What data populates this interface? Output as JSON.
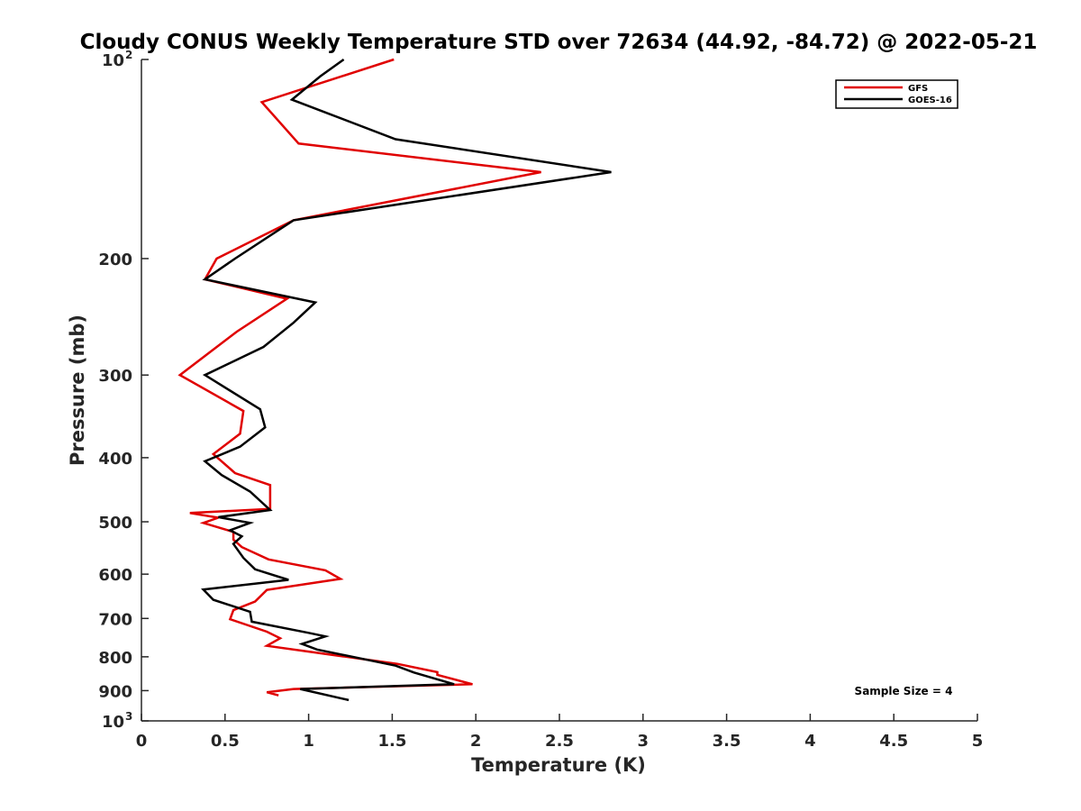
{
  "chart_data": {
    "type": "line",
    "title": "Cloudy CONUS Weekly Temperature STD over 72634 (44.92, -84.72) @ 2022-05-21",
    "xlabel": "Temperature (K)",
    "ylabel": "Pressure (mb)",
    "xlim": [
      0,
      5
    ],
    "ylim": [
      100,
      1000
    ],
    "yscale": "log",
    "y_reversed": true,
    "grid": false,
    "x_ticks": [
      {
        "value": 0,
        "label": "0"
      },
      {
        "value": 0.5,
        "label": "0.5"
      },
      {
        "value": 1,
        "label": "1"
      },
      {
        "value": 1.5,
        "label": "1.5"
      },
      {
        "value": 2,
        "label": "2"
      },
      {
        "value": 2.5,
        "label": "2.5"
      },
      {
        "value": 3,
        "label": "3"
      },
      {
        "value": 3.5,
        "label": "3.5"
      },
      {
        "value": 4,
        "label": "4"
      },
      {
        "value": 4.5,
        "label": "4.5"
      },
      {
        "value": 5,
        "label": "5"
      }
    ],
    "y_ticks": [
      {
        "value": 100,
        "label": "10",
        "exp": "2"
      },
      {
        "value": 200,
        "label": "200"
      },
      {
        "value": 300,
        "label": "300"
      },
      {
        "value": 400,
        "label": "400"
      },
      {
        "value": 500,
        "label": "500"
      },
      {
        "value": 600,
        "label": "600"
      },
      {
        "value": 700,
        "label": "700"
      },
      {
        "value": 800,
        "label": "800"
      },
      {
        "value": 900,
        "label": "900"
      },
      {
        "value": 1000,
        "label": "10",
        "exp": "3"
      }
    ],
    "legend_position": "top-right",
    "series": [
      {
        "name": "GFS",
        "color": "#e00000",
        "x": [
          1.51,
          0.72,
          0.94,
          2.39,
          0.91,
          0.45,
          0.38,
          0.87,
          0.57,
          0.23,
          0.61,
          0.59,
          0.43,
          0.56,
          0.77,
          0.77,
          0.29,
          0.46,
          0.37,
          0.55,
          0.55,
          0.6,
          0.76,
          1.1,
          1.19,
          0.75,
          0.68,
          0.55,
          0.53,
          0.75,
          0.83,
          0.75,
          1.53,
          1.77,
          1.77,
          1.98,
          0.91,
          0.75,
          0.82
        ],
        "y": [
          100,
          116,
          134,
          148,
          175,
          200,
          215,
          230,
          258,
          300,
          340,
          368,
          395,
          422,
          440,
          478,
          485,
          493,
          502,
          518,
          532,
          546,
          570,
          592,
          610,
          634,
          660,
          680,
          702,
          733,
          750,
          770,
          820,
          844,
          852,
          880,
          895,
          905,
          915
        ]
      },
      {
        "name": "GOES-16",
        "color": "#000000",
        "x": [
          1.21,
          1.07,
          0.9,
          1.52,
          2.81,
          0.91,
          0.56,
          0.38,
          1.04,
          0.91,
          0.73,
          0.38,
          0.71,
          0.74,
          0.59,
          0.38,
          0.48,
          0.65,
          0.77,
          0.46,
          0.65,
          0.53,
          0.6,
          0.55,
          0.61,
          0.68,
          0.88,
          0.37,
          0.43,
          0.65,
          0.66,
          1.0,
          1.1,
          0.96,
          1.05,
          1.52,
          1.63,
          1.87,
          0.95,
          1.24
        ],
        "y": [
          100,
          106,
          115,
          132,
          148,
          175,
          200,
          215,
          233,
          250,
          272,
          300,
          338,
          360,
          385,
          405,
          425,
          450,
          480,
          492,
          502,
          515,
          526,
          540,
          567,
          590,
          612,
          633,
          656,
          684,
          708,
          736,
          745,
          765,
          780,
          825,
          845,
          880,
          895,
          930
        ]
      }
    ],
    "annotations": [
      {
        "text": "Sample Size = 4"
      }
    ]
  }
}
